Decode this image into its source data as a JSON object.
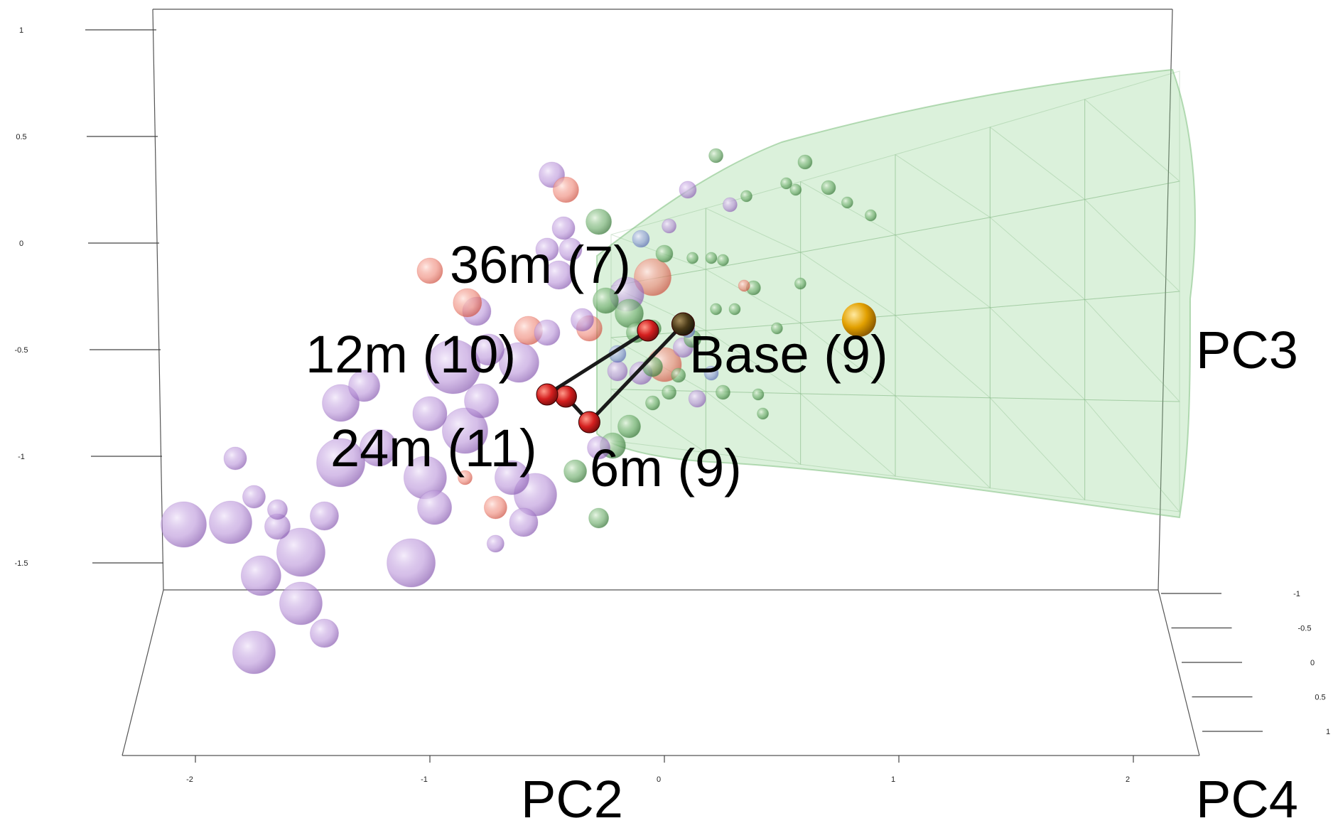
{
  "chart_data": {
    "type": "scatter",
    "title": "",
    "axes": {
      "x": {
        "label": "PC2",
        "ticks": [
          "-2",
          "-1",
          "0",
          "1",
          "2"
        ]
      },
      "y": {
        "label": "PC3",
        "ticks": [
          "1",
          "0.5",
          "0",
          "-0.5",
          "-1",
          "-1.5"
        ]
      },
      "z": {
        "label": "PC4",
        "ticks": [
          "-1",
          "-0.5",
          "0",
          "0.5",
          "1"
        ]
      }
    },
    "colors": {
      "purple": "#9b6fc4",
      "red": "#e05545",
      "green": "#4f9a50",
      "blue": "#6a7fc8",
      "centroid": "#c91a1a",
      "base_centroid": "#2b2b1a",
      "gold": "#e0a000",
      "hull": "#8fd48f"
    },
    "groups": [
      {
        "label": "Base (9)",
        "centroid": {
          "x": 0.08,
          "y": -0.38
        }
      },
      {
        "label": "6m (9)",
        "centroid": {
          "x": -0.32,
          "y": -0.84
        }
      },
      {
        "label": "12m (10)",
        "centroid": {
          "x": -0.42,
          "y": -0.72
        }
      },
      {
        "label": "24m (11)",
        "centroid": {
          "x": -0.5,
          "y": -0.71
        }
      },
      {
        "label": "36m (7)",
        "centroid": {
          "x": -0.07,
          "y": -0.41
        }
      }
    ],
    "reference_point": {
      "x": 0.83,
      "y": -0.36
    },
    "points": [
      {
        "x": -2.05,
        "y": -1.32,
        "r": 32,
        "c": "purple"
      },
      {
        "x": -1.85,
        "y": -1.31,
        "r": 30,
        "c": "purple"
      },
      {
        "x": -1.72,
        "y": -1.56,
        "r": 28,
        "c": "purple"
      },
      {
        "x": -1.55,
        "y": -1.45,
        "r": 34,
        "c": "purple"
      },
      {
        "x": -1.55,
        "y": -1.69,
        "r": 30,
        "c": "purple"
      },
      {
        "x": -1.75,
        "y": -1.92,
        "r": 30,
        "c": "purple"
      },
      {
        "x": -1.45,
        "y": -1.83,
        "r": 20,
        "c": "purple"
      },
      {
        "x": -1.65,
        "y": -1.33,
        "r": 18,
        "c": "purple"
      },
      {
        "x": -1.45,
        "y": -1.28,
        "r": 20,
        "c": "purple"
      },
      {
        "x": -1.65,
        "y": -1.25,
        "r": 14,
        "c": "purple"
      },
      {
        "x": -1.75,
        "y": -1.19,
        "r": 16,
        "c": "purple"
      },
      {
        "x": -1.83,
        "y": -1.01,
        "r": 16,
        "c": "purple"
      },
      {
        "x": -1.38,
        "y": -1.03,
        "r": 34,
        "c": "purple"
      },
      {
        "x": -1.38,
        "y": -0.75,
        "r": 26,
        "c": "purple"
      },
      {
        "x": -1.28,
        "y": -0.67,
        "r": 22,
        "c": "purple"
      },
      {
        "x": -1.22,
        "y": -0.96,
        "r": 26,
        "c": "purple"
      },
      {
        "x": -1.08,
        "y": -1.5,
        "r": 34,
        "c": "purple"
      },
      {
        "x": -1.02,
        "y": -1.1,
        "r": 30,
        "c": "purple"
      },
      {
        "x": -1.0,
        "y": -0.8,
        "r": 24,
        "c": "purple"
      },
      {
        "x": -0.98,
        "y": -1.24,
        "r": 24,
        "c": "purple"
      },
      {
        "x": -0.9,
        "y": -0.58,
        "r": 38,
        "c": "purple"
      },
      {
        "x": -0.85,
        "y": -0.88,
        "r": 32,
        "c": "purple"
      },
      {
        "x": -0.78,
        "y": -0.74,
        "r": 24,
        "c": "purple"
      },
      {
        "x": -0.8,
        "y": -0.32,
        "r": 20,
        "c": "purple"
      },
      {
        "x": -0.75,
        "y": -0.5,
        "r": 22,
        "c": "purple"
      },
      {
        "x": -0.65,
        "y": -1.1,
        "r": 24,
        "c": "purple"
      },
      {
        "x": -0.62,
        "y": -0.56,
        "r": 28,
        "c": "purple"
      },
      {
        "x": -0.55,
        "y": -1.18,
        "r": 30,
        "c": "purple"
      },
      {
        "x": -0.6,
        "y": -1.31,
        "r": 20,
        "c": "purple"
      },
      {
        "x": -0.72,
        "y": -1.41,
        "r": 12,
        "c": "purple"
      },
      {
        "x": -0.5,
        "y": -0.42,
        "r": 18,
        "c": "purple"
      },
      {
        "x": -0.4,
        "y": -0.03,
        "r": 16,
        "c": "purple"
      },
      {
        "x": -0.48,
        "y": 0.32,
        "r": 18,
        "c": "purple"
      },
      {
        "x": -0.43,
        "y": 0.07,
        "r": 16,
        "c": "purple"
      },
      {
        "x": -0.5,
        "y": -0.03,
        "r": 16,
        "c": "purple"
      },
      {
        "x": -0.45,
        "y": -0.15,
        "r": 20,
        "c": "purple"
      },
      {
        "x": -0.35,
        "y": -0.36,
        "r": 16,
        "c": "purple"
      },
      {
        "x": -0.28,
        "y": -0.96,
        "r": 16,
        "c": "purple"
      },
      {
        "x": -0.2,
        "y": -0.6,
        "r": 14,
        "c": "purple"
      },
      {
        "x": -0.16,
        "y": -0.24,
        "r": 24,
        "c": "purple"
      },
      {
        "x": -0.1,
        "y": -0.61,
        "r": 16,
        "c": "purple"
      },
      {
        "x": 0.1,
        "y": 0.25,
        "r": 12,
        "c": "purple"
      },
      {
        "x": 0.08,
        "y": -0.49,
        "r": 14,
        "c": "purple"
      },
      {
        "x": 0.14,
        "y": -0.73,
        "r": 12,
        "c": "purple"
      },
      {
        "x": 0.28,
        "y": 0.18,
        "r": 10,
        "c": "purple"
      },
      {
        "x": 0.02,
        "y": 0.08,
        "r": 10,
        "c": "purple"
      },
      {
        "x": -0.84,
        "y": -0.28,
        "r": 20,
        "c": "red"
      },
      {
        "x": -1.0,
        "y": -0.13,
        "r": 18,
        "c": "red"
      },
      {
        "x": -0.42,
        "y": 0.25,
        "r": 18,
        "c": "red"
      },
      {
        "x": -0.58,
        "y": -0.41,
        "r": 20,
        "c": "red"
      },
      {
        "x": -0.32,
        "y": -0.4,
        "r": 18,
        "c": "red"
      },
      {
        "x": -0.72,
        "y": -1.24,
        "r": 16,
        "c": "red"
      },
      {
        "x": -0.85,
        "y": -1.1,
        "r": 10,
        "c": "red"
      },
      {
        "x": -0.05,
        "y": -0.16,
        "r": 26,
        "c": "red"
      },
      {
        "x": 0.0,
        "y": -0.57,
        "r": 24,
        "c": "red"
      },
      {
        "x": 0.34,
        "y": -0.2,
        "r": 8,
        "c": "red"
      },
      {
        "x": -0.28,
        "y": 0.1,
        "r": 18,
        "c": "green"
      },
      {
        "x": -0.25,
        "y": -0.27,
        "r": 18,
        "c": "green"
      },
      {
        "x": -0.15,
        "y": -0.33,
        "r": 20,
        "c": "green"
      },
      {
        "x": -0.22,
        "y": -0.95,
        "r": 18,
        "c": "green"
      },
      {
        "x": -0.38,
        "y": -1.07,
        "r": 16,
        "c": "green"
      },
      {
        "x": -0.28,
        "y": -1.29,
        "r": 14,
        "c": "green"
      },
      {
        "x": -0.15,
        "y": -0.86,
        "r": 16,
        "c": "green"
      },
      {
        "x": -0.05,
        "y": -0.58,
        "r": 14,
        "c": "green"
      },
      {
        "x": 0.0,
        "y": -0.05,
        "r": 12,
        "c": "green"
      },
      {
        "x": -0.05,
        "y": -0.4,
        "r": 12,
        "c": "green"
      },
      {
        "x": 0.22,
        "y": 0.41,
        "r": 10,
        "c": "green"
      },
      {
        "x": 0.6,
        "y": 0.38,
        "r": 10,
        "c": "green"
      },
      {
        "x": 0.52,
        "y": 0.28,
        "r": 8,
        "c": "green"
      },
      {
        "x": 0.35,
        "y": 0.22,
        "r": 8,
        "c": "green"
      },
      {
        "x": 0.7,
        "y": 0.26,
        "r": 10,
        "c": "green"
      },
      {
        "x": 0.88,
        "y": 0.13,
        "r": 8,
        "c": "green"
      },
      {
        "x": 0.12,
        "y": -0.07,
        "r": 8,
        "c": "green"
      },
      {
        "x": 0.2,
        "y": -0.07,
        "r": 8,
        "c": "green"
      },
      {
        "x": 0.25,
        "y": -0.08,
        "r": 8,
        "c": "green"
      },
      {
        "x": 0.22,
        "y": -0.31,
        "r": 8,
        "c": "green"
      },
      {
        "x": 0.3,
        "y": -0.31,
        "r": 8,
        "c": "green"
      },
      {
        "x": 0.4,
        "y": -0.71,
        "r": 8,
        "c": "green"
      },
      {
        "x": 0.42,
        "y": -0.8,
        "r": 8,
        "c": "green"
      },
      {
        "x": 0.58,
        "y": -0.19,
        "r": 8,
        "c": "green"
      },
      {
        "x": 0.38,
        "y": -0.21,
        "r": 10,
        "c": "green"
      },
      {
        "x": 0.48,
        "y": -0.4,
        "r": 8,
        "c": "green"
      },
      {
        "x": 0.12,
        "y": -0.45,
        "r": 12,
        "c": "green"
      },
      {
        "x": 0.06,
        "y": -0.62,
        "r": 10,
        "c": "green"
      },
      {
        "x": 0.02,
        "y": -0.7,
        "r": 10,
        "c": "green"
      },
      {
        "x": -0.12,
        "y": -0.42,
        "r": 14,
        "c": "green"
      },
      {
        "x": -0.05,
        "y": -0.75,
        "r": 10,
        "c": "green"
      },
      {
        "x": 0.25,
        "y": -0.7,
        "r": 10,
        "c": "green"
      },
      {
        "x": 0.56,
        "y": 0.25,
        "r": 8,
        "c": "green"
      },
      {
        "x": 0.78,
        "y": 0.19,
        "r": 8,
        "c": "green"
      },
      {
        "x": -0.1,
        "y": 0.02,
        "r": 12,
        "c": "blue"
      },
      {
        "x": 0.2,
        "y": -0.61,
        "r": 10,
        "c": "blue"
      },
      {
        "x": -0.2,
        "y": -0.52,
        "r": 12,
        "c": "blue"
      },
      {
        "x": 0.1,
        "y": -0.41,
        "r": 10,
        "c": "blue"
      }
    ]
  }
}
